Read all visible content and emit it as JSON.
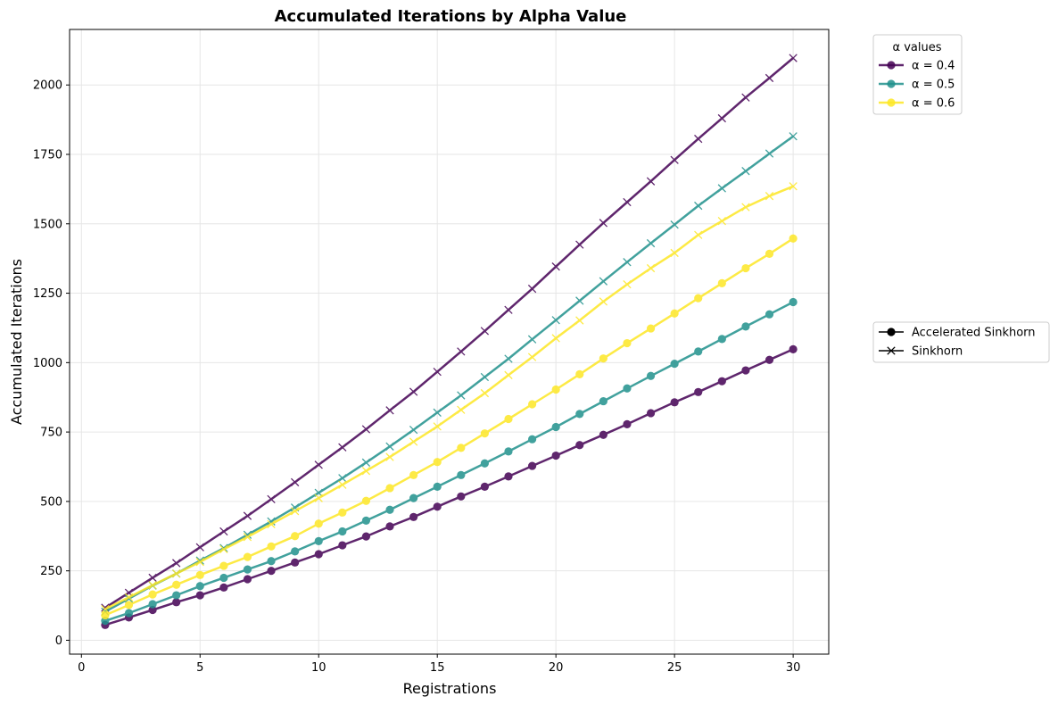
{
  "chart_data": {
    "type": "line",
    "title": "Accumulated Iterations by Alpha Value",
    "xlabel": "Registrations",
    "ylabel": "Accumulated Iterations",
    "xlim": [
      -0.5,
      31.5
    ],
    "ylim": [
      -50,
      2200
    ],
    "xticks": [
      0,
      5,
      10,
      15,
      20,
      25,
      30
    ],
    "yticks": [
      0,
      250,
      500,
      750,
      1000,
      1250,
      1500,
      1750,
      2000
    ],
    "grid": true,
    "x": [
      1,
      2,
      3,
      4,
      5,
      6,
      7,
      8,
      9,
      10,
      11,
      12,
      13,
      14,
      15,
      16,
      17,
      18,
      19,
      20,
      21,
      22,
      23,
      24,
      25,
      26,
      27,
      28,
      29,
      30
    ],
    "series": [
      {
        "name": "α = 0.4",
        "alpha_value": 0.4,
        "color": "#440154",
        "accelerated": [
          55,
          82,
          109,
          137,
          162,
          190,
          220,
          250,
          280,
          310,
          342,
          374,
          410,
          444,
          481,
          518,
          553,
          590,
          628,
          665,
          703,
          740,
          778,
          818,
          857,
          894,
          933,
          972,
          1010,
          1048
        ],
        "sinkhorn": [
          117,
          171,
          225,
          278,
          335,
          392,
          448,
          508,
          569,
          632,
          695,
          760,
          828,
          895,
          967,
          1040,
          1114,
          1190,
          1266,
          1346,
          1425,
          1503,
          1578,
          1653,
          1730,
          1806,
          1880,
          1955,
          2025,
          2097
        ]
      },
      {
        "name": "α = 0.5",
        "alpha_value": 0.5,
        "color": "#21918c",
        "accelerated": [
          70,
          98,
          130,
          162,
          195,
          225,
          255,
          285,
          320,
          357,
          392,
          431,
          470,
          512,
          553,
          595,
          637,
          680,
          724,
          768,
          815,
          861,
          907,
          952,
          996,
          1040,
          1085,
          1130,
          1174,
          1218
        ],
        "sinkhorn": [
          103,
          150,
          197,
          240,
          287,
          332,
          380,
          428,
          478,
          531,
          584,
          640,
          698,
          758,
          820,
          882,
          948,
          1014,
          1084,
          1153,
          1223,
          1293,
          1362,
          1430,
          1497,
          1565,
          1628,
          1690,
          1753,
          1815
        ]
      },
      {
        "name": "α = 0.6",
        "alpha_value": 0.6,
        "color": "#fde725",
        "accelerated": [
          90,
          127,
          165,
          200,
          235,
          268,
          300,
          338,
          375,
          420,
          460,
          502,
          548,
          595,
          642,
          693,
          745,
          797,
          850,
          903,
          958,
          1015,
          1070,
          1123,
          1177,
          1232,
          1286,
          1340,
          1392,
          1447
        ],
        "sinkhorn": [
          112,
          155,
          198,
          240,
          282,
          328,
          372,
          418,
          465,
          512,
          560,
          610,
          660,
          715,
          770,
          830,
          890,
          955,
          1020,
          1088,
          1152,
          1220,
          1282,
          1340,
          1395,
          1460,
          1510,
          1560,
          1600,
          1635
        ]
      }
    ],
    "legend_title": "α values",
    "legend_markers": [
      "Accelerated Sinkhorn",
      "Sinkhorn"
    ]
  }
}
